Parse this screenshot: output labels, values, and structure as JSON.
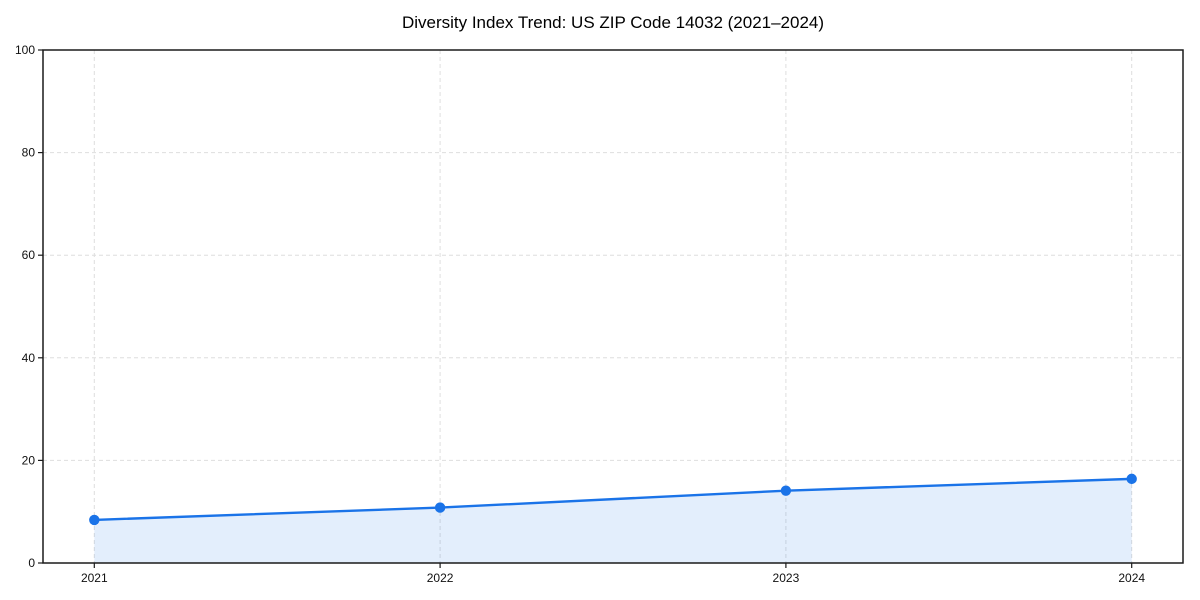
{
  "chart_data": {
    "type": "area",
    "title": "Diversity Index Trend: US ZIP Code 14032 (2021–2024)",
    "categories": [
      "2021",
      "2022",
      "2023",
      "2024"
    ],
    "series": [
      {
        "name": "Diversity Index",
        "values": [
          8.4,
          10.8,
          14.1,
          16.4
        ]
      }
    ],
    "xlabel": "",
    "ylabel": "",
    "ylim": [
      0,
      100
    ],
    "yticks": [
      0,
      20,
      40,
      60,
      80,
      100
    ],
    "grid": true,
    "grid_style": "dashed",
    "legend": false,
    "marker": "circle",
    "colors": {
      "line": "#1a73e8",
      "marker": "#1a73e8",
      "fill": "#1a73e8",
      "fill_opacity": 0.12,
      "grid": "#dedede",
      "spine": "#1a1a1a",
      "tick_text": "#111111",
      "background": "#ffffff"
    }
  }
}
